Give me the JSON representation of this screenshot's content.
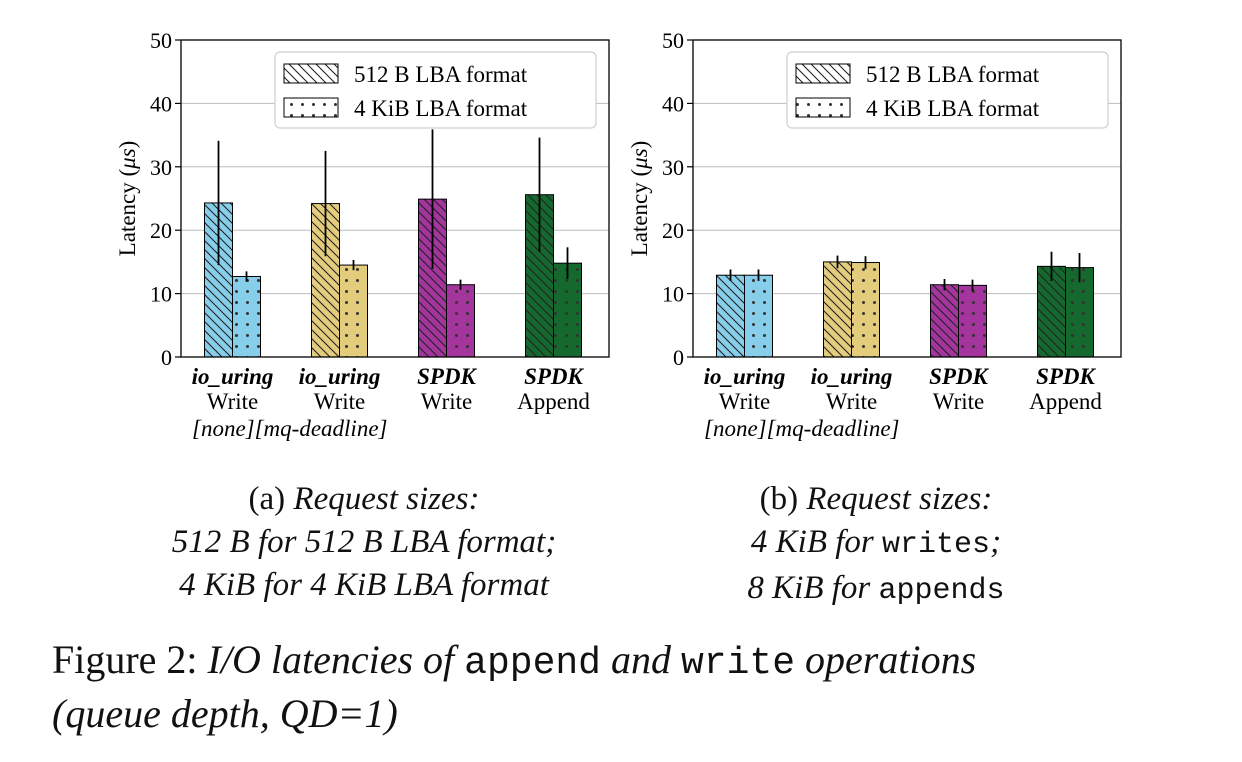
{
  "chart_data": [
    {
      "type": "bar",
      "ylabel_prefix": "Latency (",
      "ylabel_mu": "μs",
      "ylabel_suffix": ")",
      "ylim": [
        0,
        50
      ],
      "yticks": [
        0,
        10,
        20,
        30,
        40,
        50
      ],
      "grid": true,
      "legend_position": "top-right",
      "categories": [
        {
          "line1": "io_uring",
          "line2": "Write"
        },
        {
          "line1": "io_uring",
          "line2": "Write"
        },
        {
          "line1": "SPDK",
          "line2": "Write"
        },
        {
          "line1": "SPDK",
          "line2": "Append"
        }
      ],
      "scheduler_note": "[none][mq-deadline]",
      "colors": [
        "#87ceeb",
        "#e3cd7d",
        "#a3359c",
        "#15692e"
      ],
      "series": [
        {
          "name": "512 B LBA format",
          "pattern": "hatch",
          "values": [
            24.3,
            24.2,
            24.9,
            25.6
          ],
          "error": [
            9.8,
            8.3,
            11.0,
            9.0
          ]
        },
        {
          "name": "4 KiB LBA format",
          "pattern": "dots",
          "values": [
            12.7,
            14.5,
            11.4,
            14.8
          ],
          "error": [
            0.8,
            0.8,
            0.8,
            2.5
          ]
        }
      ]
    },
    {
      "type": "bar",
      "ylabel_prefix": "Latency (",
      "ylabel_mu": "μs",
      "ylabel_suffix": ")",
      "ylim": [
        0,
        50
      ],
      "yticks": [
        0,
        10,
        20,
        30,
        40,
        50
      ],
      "grid": true,
      "legend_position": "top-right",
      "categories": [
        {
          "line1": "io_uring",
          "line2": "Write"
        },
        {
          "line1": "io_uring",
          "line2": "Write"
        },
        {
          "line1": "SPDK",
          "line2": "Write"
        },
        {
          "line1": "SPDK",
          "line2": "Append"
        }
      ],
      "scheduler_note": "[none][mq-deadline]",
      "colors": [
        "#87ceeb",
        "#e3cd7d",
        "#a3359c",
        "#15692e"
      ],
      "series": [
        {
          "name": "512 B LBA format",
          "pattern": "hatch",
          "values": [
            12.9,
            15.0,
            11.4,
            14.3
          ],
          "error": [
            0.9,
            1.0,
            0.9,
            2.3
          ]
        },
        {
          "name": "4 KiB LBA format",
          "pattern": "dots",
          "values": [
            12.9,
            14.9,
            11.3,
            14.1
          ],
          "error": [
            0.9,
            1.0,
            0.9,
            2.3
          ]
        }
      ]
    }
  ],
  "captions": {
    "a": {
      "label": "(a)",
      "title": "Request sizes:",
      "line2": "512 B for 512 B LBA format;",
      "line3": "4 KiB for 4 KiB LBA format"
    },
    "b": {
      "label": "(b)",
      "title": "Request sizes:",
      "line2_prefix": "4 KiB for ",
      "line2_code": "writes",
      "line2_suffix": ";",
      "line3_prefix": "8 KiB for ",
      "line3_code": "appends"
    }
  },
  "figure_caption": {
    "label": "Figure 2:",
    "part1": "I/O latencies of",
    "code1": "append",
    "part2": "and",
    "code2": "write",
    "part3": "operations",
    "line2": "(queue depth, QD=1)"
  }
}
